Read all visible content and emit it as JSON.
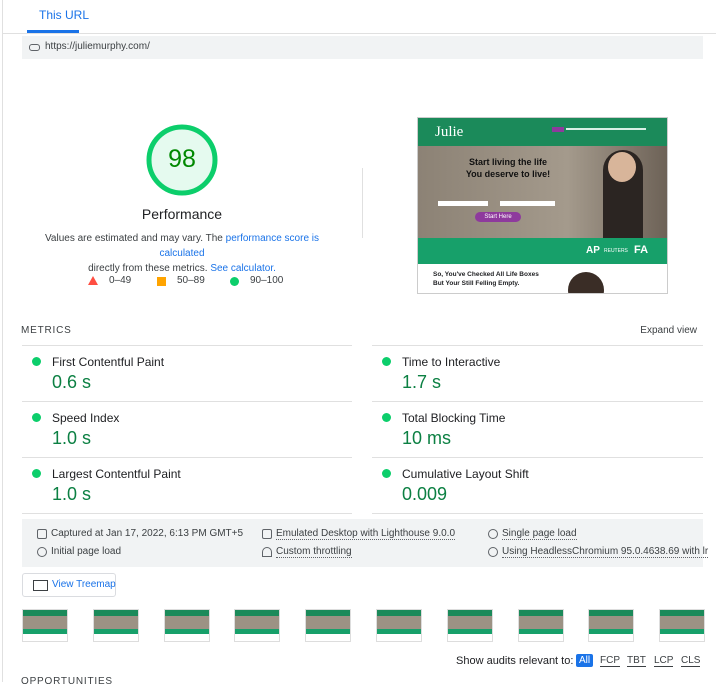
{
  "tab": "This URL",
  "url": "https://juliemurphy.com/",
  "summary": {
    "score": 98,
    "category": "Performance",
    "note": [
      "Values are estimated and may vary. The ",
      "performance score is calculated",
      "directly from these metrics. ",
      "See calculator."
    ],
    "legend": [
      "0–49",
      "50–89",
      "90–100"
    ]
  },
  "preview": {
    "brand": "Julie",
    "headline": [
      "Start living the life",
      "You deserve to live!"
    ],
    "button": "Start Here",
    "logos": [
      "AP",
      "REUTERS",
      "FA"
    ],
    "teaser": [
      "So, You've Checked All Life Boxes",
      "But Your Still Felling Empty."
    ]
  },
  "metrics": {
    "heading": "METRICS",
    "expand": "Expand view",
    "items": [
      {
        "name": "First Contentful Paint",
        "value": "0.6 s"
      },
      {
        "name": "Speed Index",
        "value": "1.0 s"
      },
      {
        "name": "Largest Contentful Paint",
        "value": "1.0 s"
      },
      {
        "name": "Time to Interactive",
        "value": "1.7 s"
      },
      {
        "name": "Total Blocking Time",
        "value": "10 ms"
      },
      {
        "name": "Cumulative Layout Shift",
        "value": "0.009"
      }
    ]
  },
  "environment": [
    "Captured at Jan 17, 2022, 6:13 PM GMT+5",
    "Initial page load",
    "Emulated Desktop with Lighthouse 9.0.0",
    "Custom throttling",
    "Single page load",
    "Using HeadlessChromium 95.0.4638.69 with lr"
  ],
  "treemap": "View Treemap",
  "filters": {
    "label": "Show audits relevant to:",
    "options": [
      "All",
      "FCP",
      "TBT",
      "LCP",
      "CLS"
    ]
  },
  "next_section": "OPPORTUNITIES"
}
